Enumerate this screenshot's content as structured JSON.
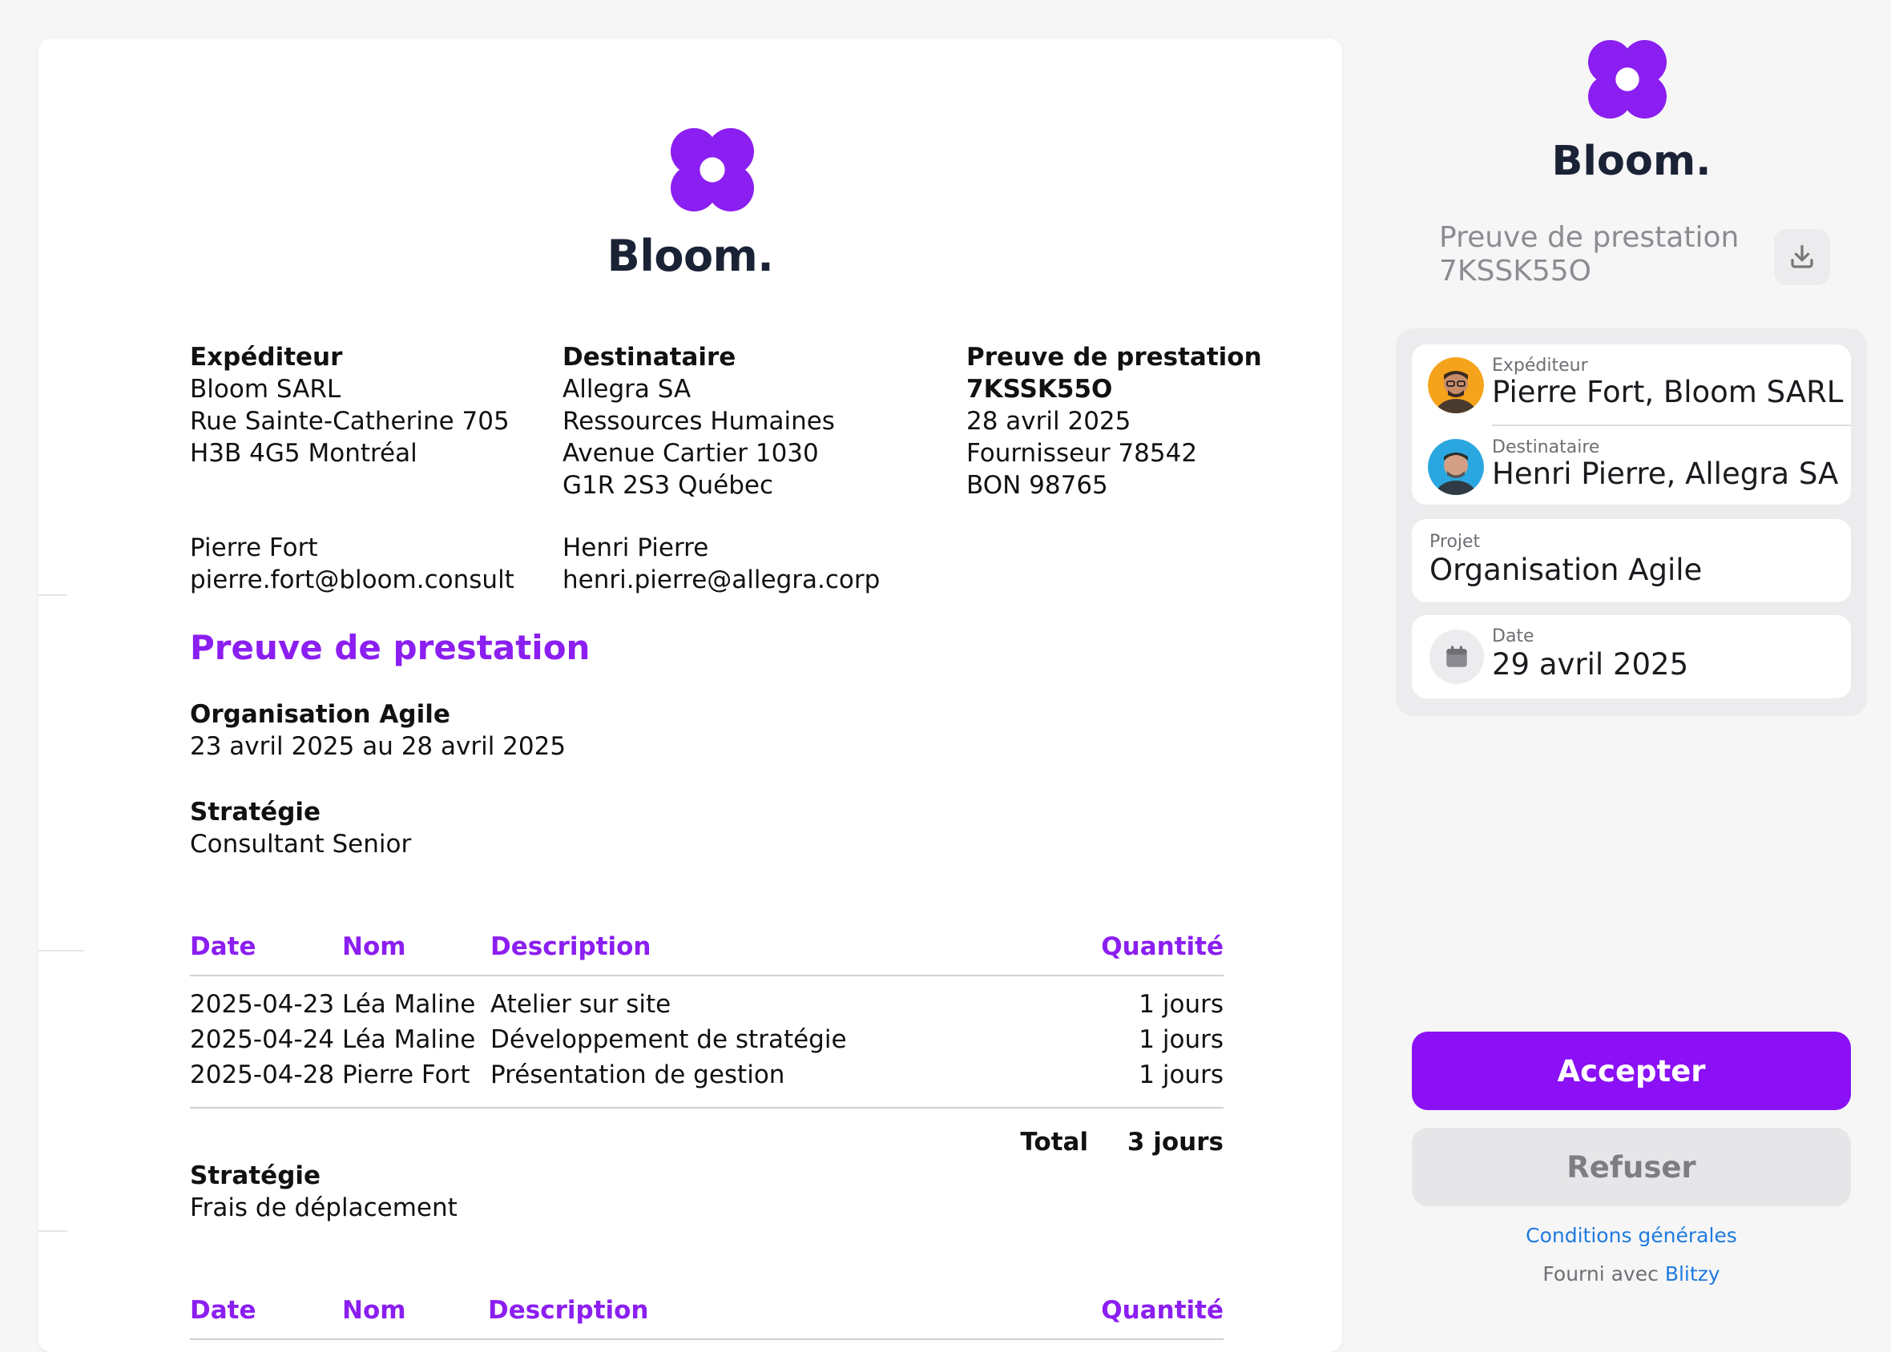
{
  "colors": {
    "accent": "#8b1ef0",
    "button_accept": "#8b10f5",
    "brand_text": "#1a2236",
    "link": "#1f7ae0"
  },
  "document": {
    "brand": "Bloom.",
    "sender": {
      "heading": "Expéditeur",
      "lines": [
        "Bloom SARL",
        "Rue Sainte-Catherine 705",
        "H3B 4G5 Montréal"
      ],
      "contact_name": "Pierre Fort",
      "contact_email": "pierre.fort@bloom.consult"
    },
    "recipient": {
      "heading": "Destinataire",
      "lines": [
        "Allegra SA",
        "Ressources Humaines",
        "Avenue Cartier 1030",
        "G1R 2S3 Québec"
      ],
      "contact_name": "Henri Pierre",
      "contact_email": "henri.pierre@allegra.corp"
    },
    "proof": {
      "heading": "Preuve de prestation",
      "number": "7KSSK55O",
      "lines": [
        "28 avril 2025",
        "Fournisseur 78542",
        "BON 98765"
      ]
    },
    "section_title": "Preuve de prestation",
    "project": {
      "name": "Organisation Agile",
      "period": "23 avril 2025 au 28 avril 2025"
    },
    "groups": [
      {
        "title": "Stratégie",
        "subtitle": "Consultant Senior",
        "columns": [
          "Date",
          "Nom",
          "Description",
          "Quantité"
        ],
        "rows": [
          [
            "2025-04-23",
            "Léa Maline",
            "Atelier sur site",
            "1 jours"
          ],
          [
            "2025-04-24",
            "Léa Maline",
            "Développement de stratégie",
            "1 jours"
          ],
          [
            "2025-04-28",
            "Pierre Fort",
            "Présentation de gestion",
            "1 jours"
          ]
        ],
        "total_label": "Total",
        "total_value": "3 jours"
      },
      {
        "title": "Stratégie",
        "subtitle": "Frais de déplacement",
        "columns": [
          "Date",
          "Nom",
          "Description",
          "Quantité"
        ]
      }
    ]
  },
  "panel": {
    "brand": "Bloom.",
    "title_line1": "Preuve de prestation",
    "title_line2": "7KSSK55O",
    "download_icon": "download-icon",
    "sender_label": "Expéditeur",
    "sender_value": "Pierre Fort, Bloom SARL",
    "recipient_label": "Destinataire",
    "recipient_value": "Henri Pierre, Allegra SA",
    "project_label": "Projet",
    "project_value": "Organisation Agile",
    "date_label": "Date",
    "date_value": "29 avril 2025",
    "accept_label": "Accepter",
    "refuse_label": "Refuser",
    "terms_label": "Conditions générales",
    "powered_prefix": "Fourni avec",
    "powered_link": "Blitzy"
  }
}
